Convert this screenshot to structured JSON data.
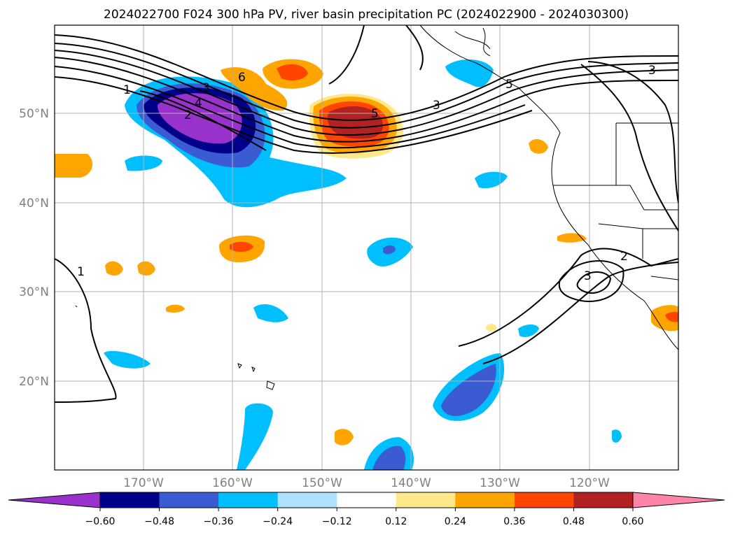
{
  "title": "2024022700 F024 300 hPa PV, river basin precipitation PC (2024022900 - 2024030300)",
  "chart_data": {
    "type": "heatmap",
    "title": "2024022700 F024 300 hPa PV, river basin precipitation PC (2024022900 - 2024030300)",
    "projection": "map",
    "lon_range": [
      -180,
      -110
    ],
    "lat_range": [
      10,
      60
    ],
    "lat_ticks": [
      "50°N",
      "40°N",
      "30°N",
      "20°N"
    ],
    "lon_ticks": [
      "170°W",
      "160°W",
      "150°W",
      "140°W",
      "130°W",
      "120°W"
    ],
    "grid": true,
    "colorbar": {
      "orientation": "horizontal",
      "extend": "both",
      "bounds": [
        -0.6,
        -0.48,
        -0.36,
        -0.24,
        -0.12,
        0.12,
        0.24,
        0.36,
        0.48,
        0.6
      ],
      "tick_labels": [
        "−0.60",
        "−0.48",
        "−0.36",
        "−0.24",
        "−0.12",
        "0.12",
        "0.24",
        "0.36",
        "0.48",
        "0.60"
      ],
      "colors": [
        "#9932cc",
        "#00008b",
        "#3a5bd1",
        "#00bfff",
        "#b0e2ff",
        "#ffffff",
        "#ffe88a",
        "#ffa500",
        "#ff4500",
        "#b22222",
        "#ff85a8"
      ]
    },
    "contour_labels": [
      "1",
      "1",
      "2",
      "3",
      "4",
      "5",
      "6",
      "5",
      "3",
      "3",
      "2",
      "3"
    ],
    "series": []
  }
}
